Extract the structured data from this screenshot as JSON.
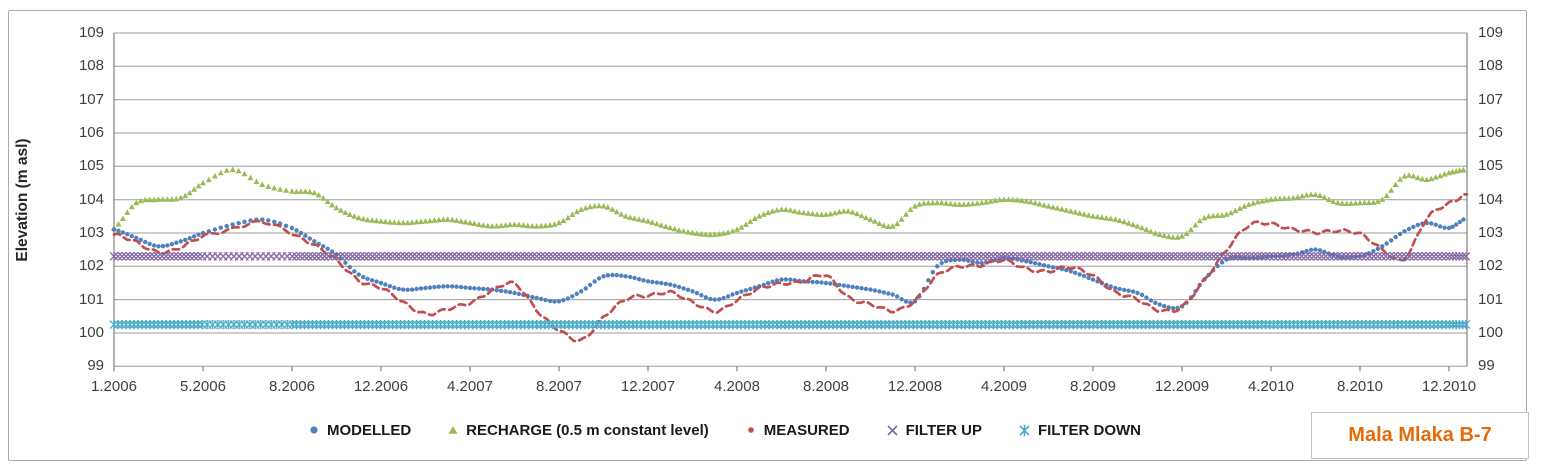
{
  "title_box": {
    "text": "Mala Mlaka B-7",
    "color": "#E36C09"
  },
  "chart_data": {
    "type": "scatter",
    "title": "",
    "ylabel": "Elevation (m asl)",
    "ylim": [
      99,
      109
    ],
    "grid": true,
    "legend_position": "bottom",
    "y_ticks": [
      "109",
      "108",
      "107",
      "106",
      "105",
      "104",
      "103",
      "102",
      "101",
      "100",
      "99"
    ],
    "x_tick_labels": [
      "1.2006",
      "5.2006",
      "8.2006",
      "12.2006",
      "4.2007",
      "8.2007",
      "12.2007",
      "4.2008",
      "8.2008",
      "12.2008",
      "4.2009",
      "8.2009",
      "12.2009",
      "4.2010",
      "8.2010",
      "12.2010"
    ],
    "x_tick_months": [
      0,
      4,
      7,
      11,
      15,
      19,
      23,
      27,
      31,
      35,
      39,
      43,
      47,
      51,
      55,
      59
    ],
    "x_unit": "month index, 0 = 1.2006, 60 = end of axis",
    "axis_color": "#808080",
    "grid_color": "#9b9b9b",
    "series": [
      {
        "name": "MODELLED",
        "color": "#4F81BD",
        "marker": "circle",
        "values": [
          103.1,
          102.85,
          102.6,
          102.75,
          103.0,
          103.25,
          103.4,
          103.15,
          102.75,
          102.35,
          101.75,
          101.5,
          101.3,
          101.35,
          101.4,
          101.35,
          101.3,
          101.2,
          101.05,
          100.95,
          101.25,
          101.7,
          101.7,
          101.55,
          101.45,
          101.25,
          101.0,
          101.2,
          101.4,
          101.6,
          101.55,
          101.5,
          101.4,
          101.3,
          101.15,
          100.95,
          102.0,
          102.2,
          102.1,
          102.25,
          102.15,
          102.0,
          101.85,
          101.6,
          101.35,
          101.2,
          100.85,
          100.8,
          101.6,
          102.2,
          102.25,
          102.3,
          102.35,
          102.5,
          102.3,
          102.3,
          102.6,
          103.05,
          103.3,
          103.15,
          103.45
        ]
      },
      {
        "name": "RECHARGE (0.5 m constant level)",
        "color": "#9BBB59",
        "marker": "triangle",
        "values": [
          103.15,
          103.9,
          104.0,
          104.05,
          104.5,
          104.9,
          104.45,
          104.25,
          104.2,
          103.75,
          103.45,
          103.35,
          103.3,
          103.35,
          103.4,
          103.3,
          103.2,
          103.25,
          103.2,
          103.3,
          103.7,
          103.8,
          103.5,
          103.35,
          103.15,
          103.0,
          102.95,
          103.1,
          103.5,
          103.7,
          103.6,
          103.55,
          103.65,
          103.4,
          103.2,
          103.8,
          103.9,
          103.85,
          103.9,
          104.0,
          103.95,
          103.8,
          103.65,
          103.5,
          103.4,
          103.2,
          102.95,
          102.9,
          103.45,
          103.55,
          103.85,
          104.0,
          104.05,
          104.15,
          103.9,
          103.9,
          104.0,
          104.7,
          104.6,
          104.8,
          104.9
        ]
      },
      {
        "name": "MEASURED",
        "color": "#C0504D",
        "marker": "dash",
        "values": [
          102.95,
          102.7,
          102.45,
          102.55,
          102.9,
          103.15,
          103.3,
          103.0,
          102.65,
          102.15,
          101.6,
          101.35,
          100.9,
          100.6,
          100.7,
          100.9,
          101.3,
          101.45,
          100.7,
          100.1,
          99.75,
          100.5,
          101.0,
          101.1,
          101.25,
          100.9,
          100.65,
          101.0,
          101.3,
          101.5,
          101.55,
          101.7,
          101.1,
          100.85,
          100.65,
          101.0,
          101.7,
          102.0,
          102.05,
          102.15,
          101.95,
          101.85,
          101.95,
          101.75,
          101.2,
          101.0,
          100.7,
          100.75,
          101.6,
          102.5,
          103.2,
          103.3,
          103.1,
          103.0,
          103.1,
          102.95,
          102.5,
          102.25,
          103.4,
          103.9,
          104.15
        ]
      },
      {
        "name": "FILTER UP",
        "color": "#8064A2",
        "marker": "x",
        "constant": 102.3
      },
      {
        "name": "FILTER DOWN",
        "color": "#4BACC6",
        "marker": "star",
        "constant": 100.25
      }
    ]
  }
}
